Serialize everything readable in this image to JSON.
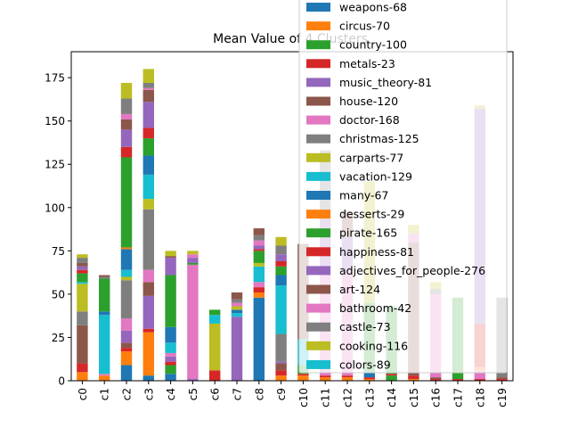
{
  "chart_data": {
    "type": "bar",
    "stacked": true,
    "title": "Mean Value of 4 Clusters",
    "categories": [
      "c0",
      "c1",
      "c2",
      "c3",
      "c4",
      "c5",
      "c6",
      "c7",
      "c8",
      "c9",
      "c10",
      "c11",
      "c12",
      "c13",
      "c14",
      "c15",
      "c16",
      "c17",
      "c18",
      "c19"
    ],
    "ylim": [
      0,
      190
    ],
    "yticks": [
      0,
      25,
      50,
      75,
      100,
      125,
      150,
      175
    ],
    "legend_position": "top-right, overlapping plot",
    "series": [
      {
        "name": "weapons-68",
        "color": "#1f77b4",
        "values": [
          0,
          0,
          9,
          3,
          4,
          1,
          0,
          0,
          48,
          0,
          0,
          0,
          0,
          0,
          0,
          0,
          0,
          0,
          0,
          0
        ]
      },
      {
        "name": "circus-70",
        "color": "#ff7f0e",
        "values": [
          5,
          3,
          8,
          25,
          0,
          0,
          0,
          0,
          3,
          3,
          3,
          2,
          2,
          0,
          0,
          1,
          0,
          0,
          0,
          0
        ]
      },
      {
        "name": "country-100",
        "color": "#2ca02c",
        "values": [
          0,
          1,
          0,
          0,
          4,
          0,
          0,
          0,
          0,
          0,
          0,
          0,
          0,
          0,
          0,
          0,
          0,
          0,
          0,
          0
        ]
      },
      {
        "name": "metals-23",
        "color": "#d62728",
        "values": [
          5,
          0,
          2,
          2,
          0,
          0,
          5,
          0,
          3,
          3,
          1,
          1,
          1,
          1,
          1,
          1,
          1,
          1,
          1,
          1
        ]
      },
      {
        "name": "music_theory-81",
        "color": "#9467bd",
        "values": [
          0,
          0,
          7,
          0,
          2,
          0,
          0,
          37,
          0,
          0,
          0,
          0,
          0,
          0,
          0,
          0,
          0,
          0,
          0,
          0
        ]
      },
      {
        "name": "house-120",
        "color": "#8c564b",
        "values": [
          1,
          0,
          3,
          0,
          0,
          0,
          0,
          0,
          0,
          4,
          0,
          0,
          0,
          1,
          0,
          0,
          1,
          0,
          0,
          0
        ]
      },
      {
        "name": "doctor-168",
        "color": "#e377c2",
        "values": [
          0,
          1,
          0,
          0,
          1,
          0,
          0,
          0,
          0,
          0,
          0,
          0,
          0,
          0,
          0,
          0,
          0,
          0,
          0,
          0
        ]
      },
      {
        "name": "christmas-125",
        "color": "#7f7f7f",
        "values": [
          0,
          0,
          0,
          0,
          0,
          0,
          0,
          0,
          0,
          0,
          0,
          0,
          0,
          0,
          0,
          0,
          0,
          0,
          0,
          0
        ]
      },
      {
        "name": "carparts-77",
        "color": "#bcbd22",
        "values": [
          0,
          0,
          0,
          0,
          0,
          0,
          0,
          0,
          0,
          0,
          0,
          0,
          0,
          0,
          0,
          0,
          0,
          0,
          0,
          0
        ]
      },
      {
        "name": "vacation-129",
        "color": "#17becf",
        "values": [
          0,
          34,
          0,
          0,
          0,
          0,
          0,
          0,
          0,
          0,
          0,
          0,
          0,
          0,
          0,
          0,
          0,
          0,
          0,
          0
        ]
      },
      {
        "name": "many-67",
        "color": "#1f77b4",
        "values": [
          0,
          2,
          0,
          0,
          0,
          0,
          0,
          0,
          0,
          0,
          0,
          0,
          0,
          0,
          0,
          0,
          0,
          0,
          0,
          0
        ]
      },
      {
        "name": "desserts-29",
        "color": "#ff7f0e",
        "values": [
          0,
          0,
          0,
          0,
          0,
          0,
          0,
          0,
          0,
          0,
          0,
          0,
          0,
          0,
          0,
          0,
          0,
          0,
          0,
          0
        ]
      },
      {
        "name": "pirate-165",
        "color": "#2ca02c",
        "values": [
          0,
          18,
          0,
          0,
          0,
          0,
          0,
          0,
          0,
          0,
          0,
          0,
          0,
          0,
          0,
          0,
          0,
          0,
          0,
          0
        ]
      },
      {
        "name": "happiness-81",
        "color": "#d62728",
        "values": [
          0,
          0,
          0,
          0,
          0,
          0,
          0,
          0,
          0,
          0,
          0,
          0,
          0,
          0,
          0,
          0,
          0,
          0,
          0,
          0
        ]
      },
      {
        "name": "adjectives_for_people-276",
        "color": "#9467bd",
        "values": [
          0,
          0,
          0,
          0,
          0,
          0,
          0,
          0,
          0,
          0,
          0,
          0,
          0,
          0,
          0,
          0,
          0,
          0,
          0,
          0
        ]
      },
      {
        "name": "art-124",
        "color": "#8c564b",
        "values": [
          22,
          1,
          0,
          0,
          0,
          0,
          0,
          0,
          0,
          0,
          0,
          0,
          0,
          0,
          0,
          0,
          0,
          0,
          0,
          0
        ]
      },
      {
        "name": "bathroom-42",
        "color": "#e377c2",
        "values": [
          0,
          0,
          0,
          0,
          0,
          0,
          0,
          0,
          0,
          0,
          0,
          0,
          0,
          0,
          0,
          0,
          0,
          0,
          0,
          0
        ]
      },
      {
        "name": "castle-73",
        "color": "#7f7f7f",
        "values": [
          8,
          0,
          0,
          0,
          0,
          0,
          0,
          0,
          0,
          0,
          0,
          0,
          0,
          0,
          0,
          0,
          0,
          0,
          0,
          0
        ]
      },
      {
        "name": "cooking-116",
        "color": "#bcbd22",
        "values": [
          0,
          0,
          0,
          0,
          0,
          0,
          0,
          0,
          0,
          0,
          0,
          0,
          0,
          0,
          0,
          0,
          0,
          0,
          0,
          0
        ]
      },
      {
        "name": "colors-89",
        "color": "#17becf",
        "values": [
          0,
          0,
          0,
          0,
          0,
          0,
          0,
          0,
          0,
          0,
          0,
          0,
          0,
          0,
          0,
          0,
          0,
          0,
          0,
          0
        ]
      }
    ],
    "stacks": [
      [
        [
          "#ff7f0e",
          5
        ],
        [
          "#d62728",
          5
        ],
        [
          "#8c564b",
          22
        ],
        [
          "#7f7f7f",
          8
        ],
        [
          "#bcbd22",
          16
        ],
        [
          "#17becf",
          1
        ],
        [
          "#2ca02c",
          5
        ],
        [
          "#d62728",
          2
        ],
        [
          "#9467bd",
          2
        ],
        [
          "#8c564b",
          2
        ],
        [
          "#7f7f7f",
          3
        ],
        [
          "#bcbd22",
          2
        ]
      ],
      [
        [
          "#ff7f0e",
          3
        ],
        [
          "#e377c2",
          1
        ],
        [
          "#17becf",
          34
        ],
        [
          "#1f77b4",
          2
        ],
        [
          "#2ca02c",
          19
        ],
        [
          "#7f7f7f",
          1
        ],
        [
          "#8c564b",
          1
        ]
      ],
      [
        [
          "#1f77b4",
          9
        ],
        [
          "#ff7f0e",
          8
        ],
        [
          "#d62728",
          2
        ],
        [
          "#8c564b",
          3
        ],
        [
          "#9467bd",
          7
        ],
        [
          "#e377c2",
          7
        ],
        [
          "#7f7f7f",
          22
        ],
        [
          "#bcbd22",
          2
        ],
        [
          "#17becf",
          4
        ],
        [
          "#1f77b4",
          12
        ],
        [
          "#ff7f0e",
          1
        ],
        [
          "#2ca02c",
          52
        ],
        [
          "#d62728",
          6
        ],
        [
          "#9467bd",
          10
        ],
        [
          "#8c564b",
          6
        ],
        [
          "#e377c2",
          3
        ],
        [
          "#7f7f7f",
          9
        ],
        [
          "#bcbd22",
          9
        ]
      ],
      [
        [
          "#1f77b4",
          3
        ],
        [
          "#ff7f0e",
          25
        ],
        [
          "#d62728",
          2
        ],
        [
          "#9467bd",
          19
        ],
        [
          "#8c564b",
          8
        ],
        [
          "#e377c2",
          7
        ],
        [
          "#7f7f7f",
          35
        ],
        [
          "#bcbd22",
          6
        ],
        [
          "#17becf",
          14
        ],
        [
          "#1f77b4",
          11
        ],
        [
          "#2ca02c",
          10
        ],
        [
          "#d62728",
          6
        ],
        [
          "#9467bd",
          15
        ],
        [
          "#8c564b",
          7
        ],
        [
          "#e377c2",
          1
        ],
        [
          "#7f7f7f",
          3
        ],
        [
          "#bcbd22",
          8
        ]
      ],
      [
        [
          "#1f77b4",
          4
        ],
        [
          "#2ca02c",
          5
        ],
        [
          "#d62728",
          2
        ],
        [
          "#9467bd",
          3
        ],
        [
          "#e377c2",
          2
        ],
        [
          "#17becf",
          6
        ],
        [
          "#1f77b4",
          9
        ],
        [
          "#2ca02c",
          30
        ],
        [
          "#9467bd",
          10
        ],
        [
          "#8c564b",
          1
        ],
        [
          "#bcbd22",
          3
        ]
      ],
      [
        [
          "#9467bd",
          1
        ],
        [
          "#e377c2",
          66
        ],
        [
          "#2ca02c",
          1
        ],
        [
          "#9467bd",
          3
        ],
        [
          "#e377c2",
          2
        ],
        [
          "#bcbd22",
          2
        ]
      ],
      [
        [
          "#d62728",
          6
        ],
        [
          "#bcbd22",
          27
        ],
        [
          "#17becf",
          5
        ],
        [
          "#2ca02c",
          3
        ]
      ],
      [
        [
          "#9467bd",
          37
        ],
        [
          "#17becf",
          2
        ],
        [
          "#1f77b4",
          2
        ],
        [
          "#bcbd22",
          2
        ],
        [
          "#e377c2",
          2
        ],
        [
          "#7f7f7f",
          2
        ],
        [
          "#8c564b",
          4
        ]
      ],
      [
        [
          "#1f77b4",
          48
        ],
        [
          "#ff7f0e",
          3
        ],
        [
          "#d62728",
          3
        ],
        [
          "#e377c2",
          3
        ],
        [
          "#17becf",
          9
        ],
        [
          "#bcbd22",
          2
        ],
        [
          "#2ca02c",
          7
        ],
        [
          "#d62728",
          1
        ],
        [
          "#9467bd",
          2
        ],
        [
          "#e377c2",
          3
        ],
        [
          "#7f7f7f",
          3
        ],
        [
          "#8c564b",
          4
        ]
      ],
      [
        [
          "#ff7f0e",
          3
        ],
        [
          "#d62728",
          3
        ],
        [
          "#8c564b",
          4
        ],
        [
          "#9467bd",
          1
        ],
        [
          "#7f7f7f",
          16
        ],
        [
          "#17becf",
          28
        ],
        [
          "#1f77b4",
          6
        ],
        [
          "#2ca02c",
          5
        ],
        [
          "#d62728",
          3
        ],
        [
          "#9467bd",
          4
        ],
        [
          "#7f7f7f",
          5
        ],
        [
          "#bcbd22",
          5
        ]
      ],
      [
        [
          "#ff7f0e",
          3
        ],
        [
          "#d62728",
          1
        ],
        [
          "#2ca02c",
          5
        ],
        [
          "#17becf",
          15
        ],
        [
          "#8c564b",
          55
        ]
      ],
      [
        [
          "#ff7f0e",
          2
        ],
        [
          "#d62728",
          1
        ],
        [
          "#e377c2",
          60
        ],
        [
          "#9467bd",
          30
        ],
        [
          "#7f7f7f",
          40
        ]
      ],
      [
        [
          "#ff7f0e",
          2
        ],
        [
          "#d62728",
          1
        ],
        [
          "#e377c2",
          60
        ],
        [
          "#9467bd",
          20
        ],
        [
          "#8c564b",
          15
        ]
      ],
      [
        [
          "#ff7f0e",
          1
        ],
        [
          "#d62728",
          1
        ],
        [
          "#1f77b4",
          3
        ],
        [
          "#2ca02c",
          40
        ],
        [
          "#bcbd22",
          70
        ]
      ],
      [
        [
          "#2ca02c",
          3
        ],
        [
          "#d62728",
          1
        ],
        [
          "#2ca02c",
          39
        ]
      ],
      [
        [
          "#ff7f0e",
          1
        ],
        [
          "#d62728",
          2
        ],
        [
          "#8c564b",
          77
        ],
        [
          "#e377c2",
          5
        ],
        [
          "#bcbd22",
          5
        ]
      ],
      [
        [
          "#d62728",
          1
        ],
        [
          "#8c564b",
          1
        ],
        [
          "#e377c2",
          48
        ],
        [
          "#7f7f7f",
          3
        ],
        [
          "#bcbd22",
          4
        ]
      ],
      [
        [
          "#d62728",
          1
        ],
        [
          "#2ca02c",
          47
        ]
      ],
      [
        [
          "#d62728",
          1
        ],
        [
          "#e377c2",
          5
        ],
        [
          "#ff7f0e",
          2
        ],
        [
          "#d62728",
          25
        ],
        [
          "#9467bd",
          124
        ],
        [
          "#bcbd22",
          2
        ]
      ],
      [
        [
          "#d62728",
          1
        ],
        [
          "#8c564b",
          1
        ],
        [
          "#7f7f7f",
          46
        ]
      ]
    ]
  }
}
